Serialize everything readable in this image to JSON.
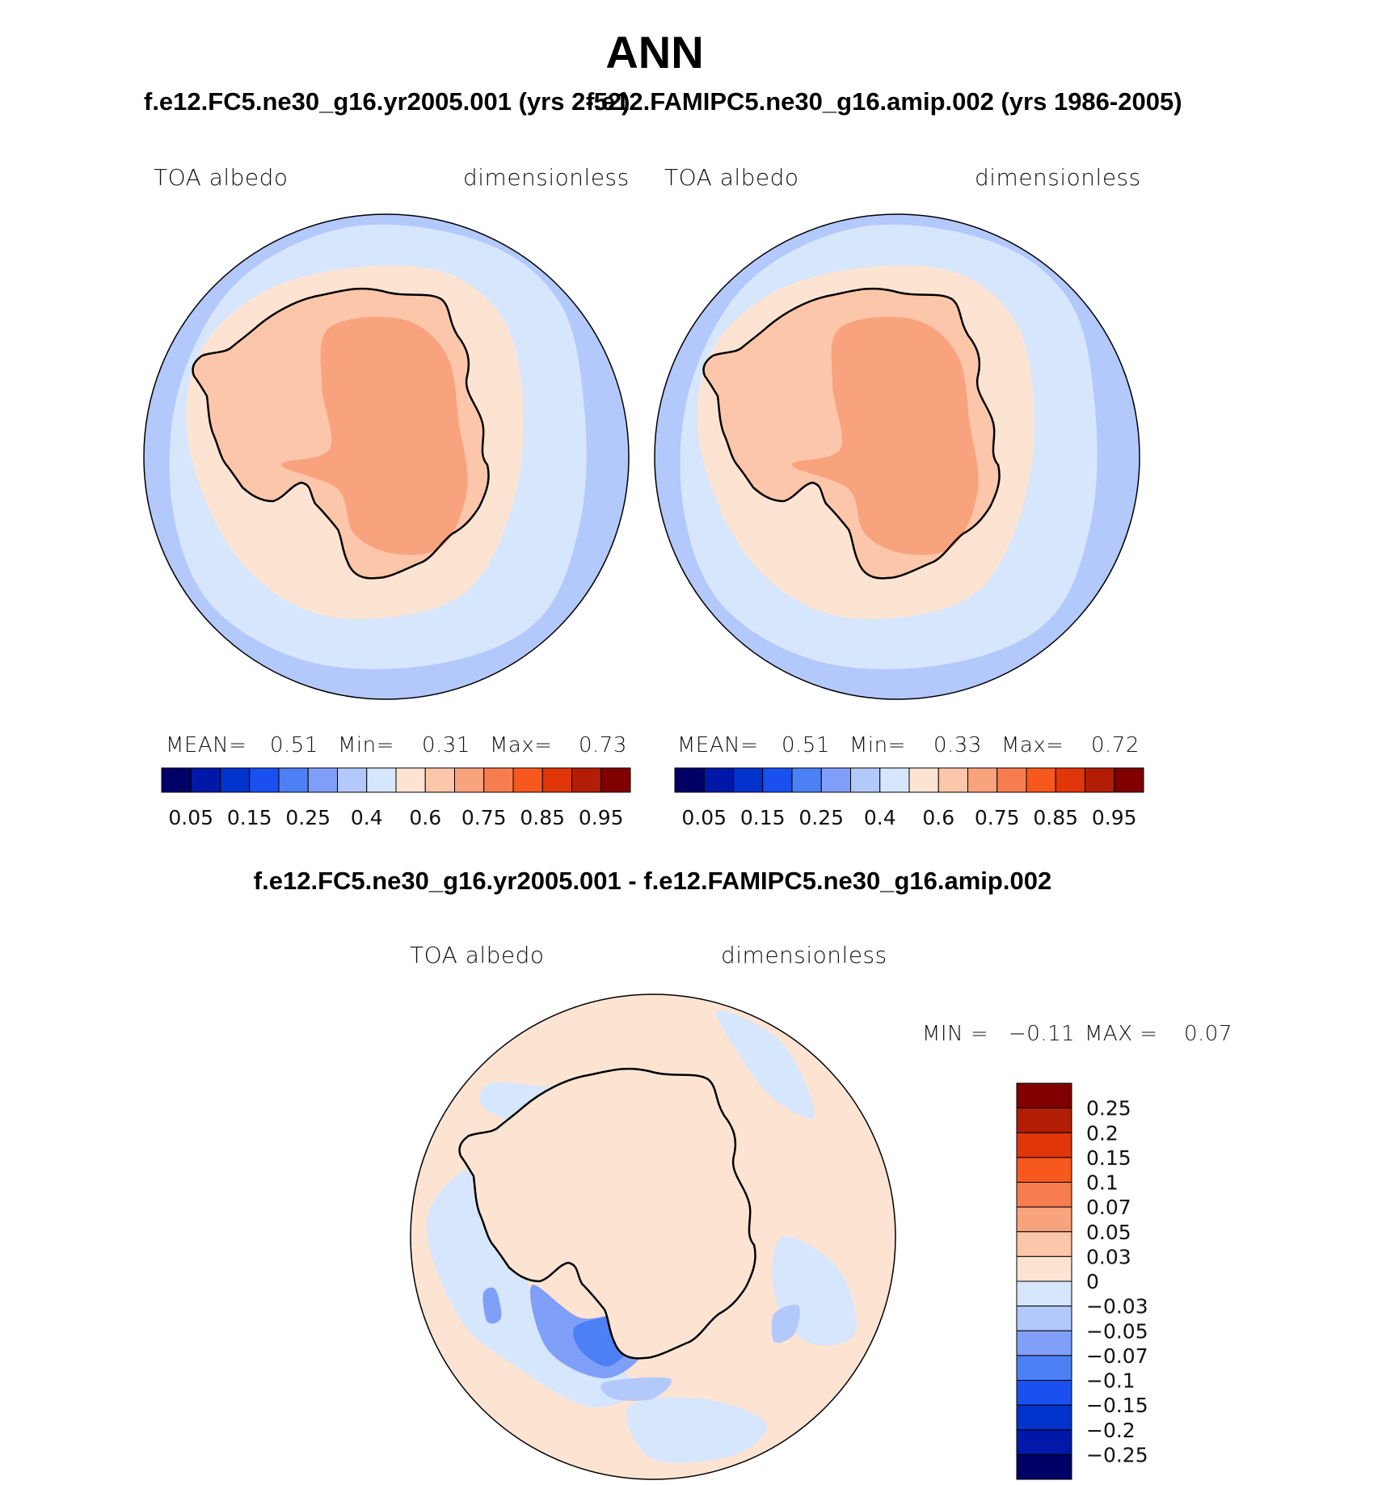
{
  "title": "ANN",
  "panels": [
    {
      "run": "f.e12.FC5.ne30_g16.yr2005.001 (yrs 2-52)",
      "variable": "TOA albedo",
      "units": "dimensionless",
      "stats": {
        "mean_label": "MEAN=",
        "mean": "0.51",
        "min_label": "Min=",
        "min": "0.31",
        "max_label": "Max=",
        "max": "0.73"
      }
    },
    {
      "run": "f.e12.FAMIPC5.ne30_g16.amip.002 (yrs 1986-2005)",
      "variable": "TOA albedo",
      "units": "dimensionless",
      "stats": {
        "mean_label": "MEAN=",
        "mean": "0.51",
        "min_label": "Min=",
        "min": "0.33",
        "max_label": "Max=",
        "max": "0.72"
      }
    }
  ],
  "difference": {
    "title": "f.e12.FC5.ne30_g16.yr2005.001 - f.e12.FAMIPC5.ne30_g16.amip.002",
    "variable": "TOA albedo",
    "units": "dimensionless",
    "min_label": "MIN =",
    "min": "−0.11",
    "max_label": "MAX =",
    "max": "0.07"
  },
  "chart_data": [
    {
      "type": "heatmap",
      "projection": "south-polar-stereographic",
      "title": "f.e12.FC5.ne30_g16.yr2005.001 (yrs 2-52)",
      "field": "TOA albedo",
      "units": "dimensionless",
      "mean": 0.51,
      "min": 0.31,
      "max": 0.73,
      "colorbar_ticks": [
        "0.05",
        "0.15",
        "0.25",
        "0.4",
        "0.6",
        "0.75",
        "0.85",
        "0.95"
      ],
      "colors": [
        "#000066",
        "#0018a8",
        "#0033cc",
        "#1a4ff0",
        "#4d7ff5",
        "#809ff8",
        "#b3c8fb",
        "#d6e6fc",
        "#fde4d2",
        "#fbc6a9",
        "#f9a27e",
        "#f77d50",
        "#f7581d",
        "#e0360a",
        "#b21e05",
        "#800000"
      ],
      "region_classes": {
        "ocean_far": 6,
        "ocean_near": 7,
        "sea_ice": 8,
        "coast": 9,
        "interior": 10
      }
    },
    {
      "type": "heatmap",
      "projection": "south-polar-stereographic",
      "title": "f.e12.FAMIPC5.ne30_g16.amip.002 (yrs 1986-2005)",
      "field": "TOA albedo",
      "units": "dimensionless",
      "mean": 0.51,
      "min": 0.33,
      "max": 0.72,
      "colorbar_ticks": [
        "0.05",
        "0.15",
        "0.25",
        "0.4",
        "0.6",
        "0.75",
        "0.85",
        "0.95"
      ],
      "colors": [
        "#000066",
        "#0018a8",
        "#0033cc",
        "#1a4ff0",
        "#4d7ff5",
        "#809ff8",
        "#b3c8fb",
        "#d6e6fc",
        "#fde4d2",
        "#fbc6a9",
        "#f9a27e",
        "#f77d50",
        "#f7581d",
        "#e0360a",
        "#b21e05",
        "#800000"
      ],
      "region_classes": {
        "ocean_far": 6,
        "ocean_near": 7,
        "sea_ice": 8,
        "coast": 9,
        "interior": 10
      }
    },
    {
      "type": "heatmap",
      "projection": "south-polar-stereographic",
      "title": "f.e12.FC5.ne30_g16.yr2005.001 - f.e12.FAMIPC5.ne30_g16.amip.002",
      "field": "TOA albedo",
      "units": "dimensionless",
      "min": -0.11,
      "max": 0.07,
      "colorbar_ticks": [
        "0.25",
        "0.2",
        "0.15",
        "0.1",
        "0.07",
        "0.05",
        "0.03",
        "0",
        "−0.03",
        "−0.05",
        "−0.07",
        "−0.1",
        "−0.15",
        "−0.2",
        "−0.25"
      ],
      "colors": [
        "#800000",
        "#b21e05",
        "#e0360a",
        "#f7581d",
        "#f77d50",
        "#f9a27e",
        "#fbc6a9",
        "#fde4d2",
        "#d6e6fc",
        "#b3c8fb",
        "#809ff8",
        "#4d7ff5",
        "#1a4ff0",
        "#0033cc",
        "#0018a8",
        "#000066"
      ],
      "background_class": 7,
      "region_classes": {
        "positive_small": 7,
        "negative_small": 8,
        "negative_mid": 10,
        "negative_strong": 11,
        "positive_mid": 9
      }
    }
  ]
}
